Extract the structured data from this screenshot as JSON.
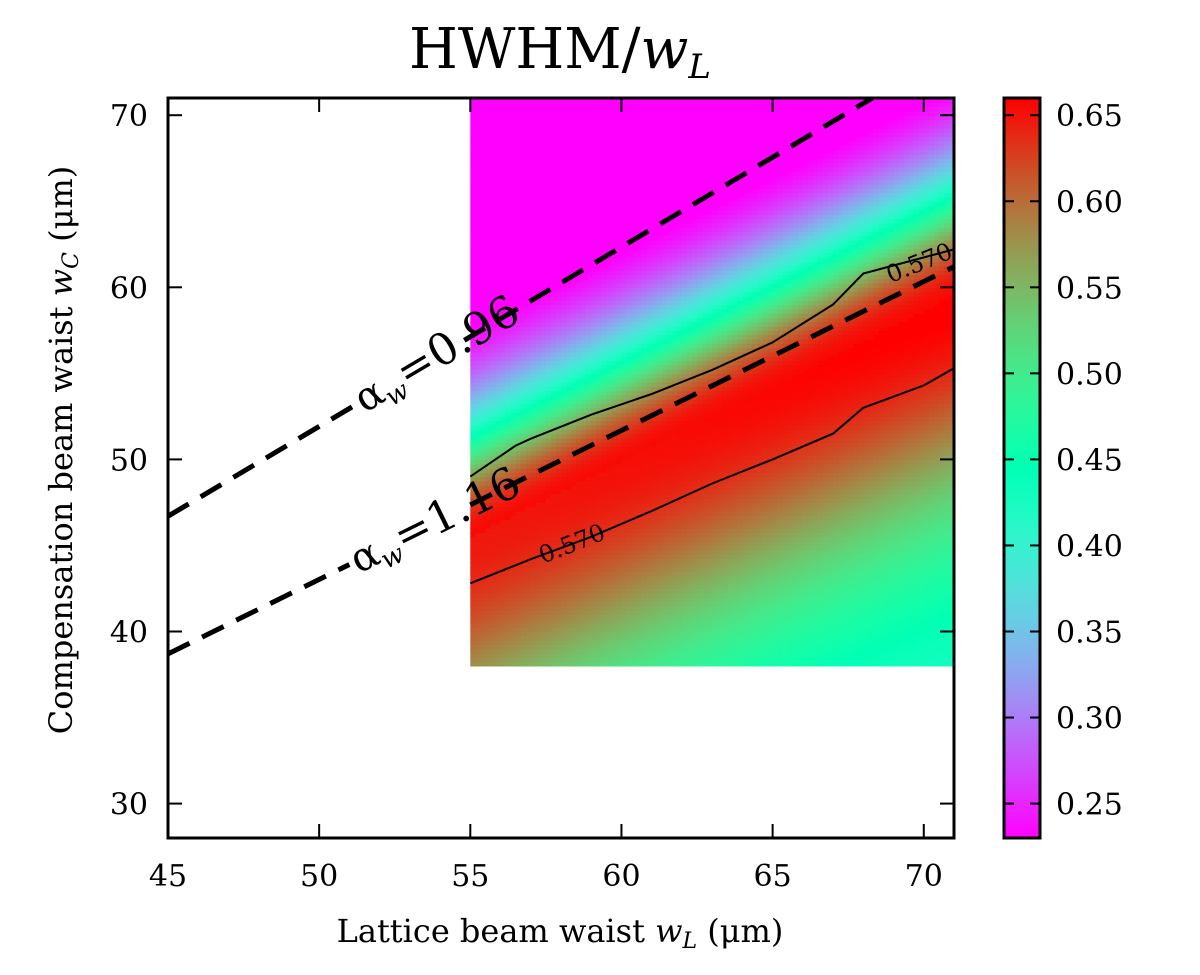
{
  "chart_data": {
    "type": "heatmap",
    "title": {
      "main": "HWHM/",
      "var": "w",
      "sub": "L"
    },
    "xlabel": {
      "text": "Lattice beam waist ",
      "var": "w",
      "sub": "L",
      "unit": " (μm)"
    },
    "ylabel": {
      "text": "Compensation beam waist ",
      "var": "w",
      "sub": "C",
      "unit": " (μm)"
    },
    "xlim": [
      45,
      71
    ],
    "ylim": [
      28,
      71
    ],
    "xticks": [
      "45",
      "50",
      "55",
      "60",
      "65",
      "70"
    ],
    "yticks": [
      "30",
      "40",
      "50",
      "60",
      "70"
    ],
    "data_region": {
      "x": [
        55,
        71
      ],
      "y": [
        38,
        71
      ]
    },
    "colormap": "rainbow",
    "colorbar": {
      "range": [
        0.23,
        0.66
      ],
      "ticks": [
        "0.25",
        "0.30",
        "0.35",
        "0.40",
        "0.45",
        "0.50",
        "0.55",
        "0.60",
        "0.65"
      ]
    },
    "peak_ridge": {
      "x": [
        55,
        71
      ],
      "y": [
        45.5,
        59.5
      ],
      "peak_value": 0.655
    },
    "contours": [
      {
        "level": 0.57,
        "label": "0.570",
        "side": "upper",
        "x": [
          55,
          56.5,
          57,
          59,
          61,
          63,
          65,
          67,
          68,
          71
        ],
        "y": [
          49,
          50.8,
          51.2,
          52.6,
          53.8,
          55.2,
          56.8,
          59,
          60.8,
          62.2
        ]
      },
      {
        "level": 0.57,
        "label": "0.570",
        "side": "lower",
        "x": [
          55,
          57,
          59,
          61,
          63,
          65,
          67,
          68,
          70,
          71
        ],
        "y": [
          42.8,
          44.2,
          45.5,
          47,
          48.6,
          50,
          51.5,
          53,
          54.3,
          55.3
        ]
      }
    ],
    "dashed_lines": [
      {
        "alpha_label": "α",
        "alpha_sub": "w",
        "value": "=0.96",
        "x": [
          45,
          68.3
        ],
        "y": [
          46.7,
          71
        ]
      },
      {
        "alpha_label": "α",
        "alpha_sub": "w",
        "value": "=1.16",
        "x": [
          45,
          71
        ],
        "y": [
          38.7,
          61.2
        ]
      }
    ]
  }
}
